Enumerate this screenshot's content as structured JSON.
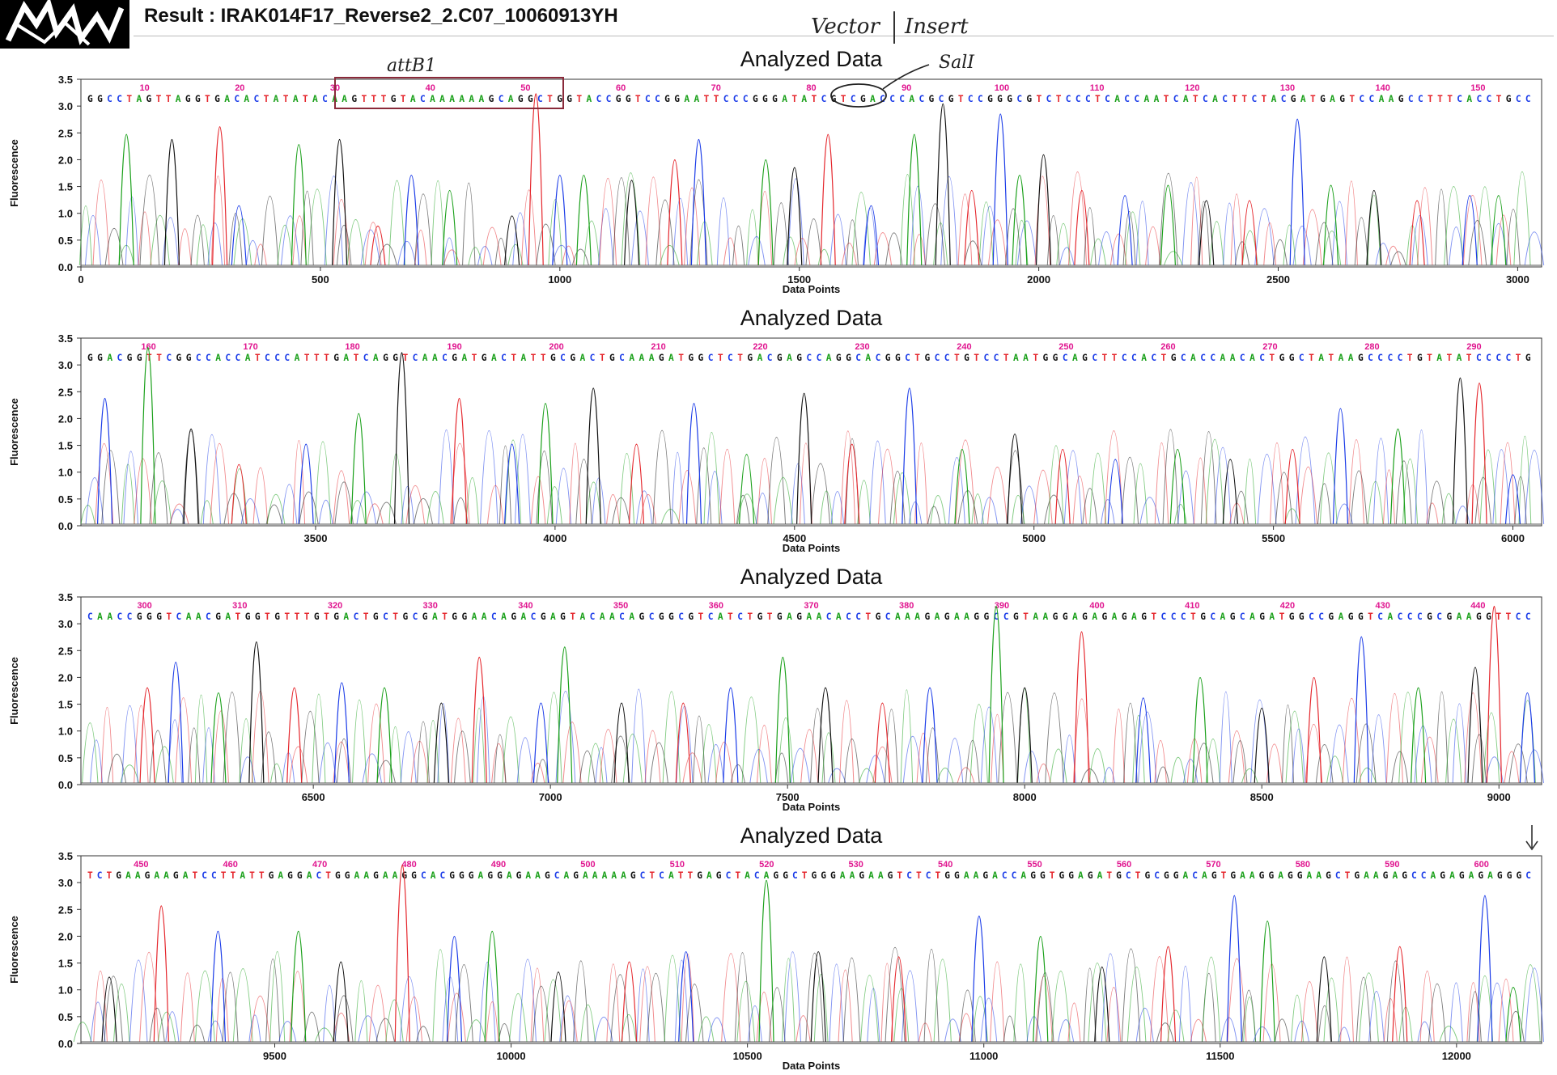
{
  "header": {
    "title": "Result  : IRAK014F17_Reverse2_2.C07_10060913YH",
    "handwritten_vector": "Vector",
    "handwritten_insert": "Insert"
  },
  "annotations": {
    "attB1": "attB1",
    "salI": "SalI"
  },
  "colors": {
    "A": "#1aa01a",
    "C": "#1a3be8",
    "G": "#111111",
    "T": "#e5262c",
    "position_numbers": "#e0158f"
  },
  "chart_data": [
    {
      "type": "line",
      "title": "Analyzed Data",
      "xlabel": "Data Points",
      "ylabel": "Fluorescence",
      "ylim": [
        0,
        3.5
      ],
      "yticks": [
        "0.0",
        "0.5",
        "1.0",
        "1.5",
        "2.0",
        "2.5",
        "3.0",
        "3.5"
      ],
      "xlim": [
        0,
        3050
      ],
      "xticks": [
        0,
        500,
        1000,
        1500,
        2000,
        2500,
        3000
      ],
      "base_positions": [
        10,
        20,
        30,
        40,
        50,
        60,
        70,
        80,
        90,
        100,
        110,
        120,
        130,
        140,
        150
      ],
      "sequence": "GGCCTAGTTAGGTGACACTATATACAAGTTTGTACAAAAAAGCAGGCTGGTACCGGTCCGGAATTCCCGGGATATCGTCGACCCACGCGTCCGGGCGTCTCCCTCACCAATCATCACTTCTACGATGAGTCCAAGCCTTTCACCTGCC",
      "peaks": [
        [
          95,
          2.6
        ],
        [
          190,
          2.5
        ],
        [
          290,
          2.75
        ],
        [
          330,
          1.2
        ],
        [
          455,
          2.4
        ],
        [
          540,
          2.5
        ],
        [
          620,
          0.8
        ],
        [
          690,
          1.8
        ],
        [
          770,
          1.5
        ],
        [
          900,
          1.0
        ],
        [
          950,
          3.4
        ],
        [
          1000,
          1.8
        ],
        [
          1050,
          1.8
        ],
        [
          1150,
          1.7
        ],
        [
          1240,
          2.1
        ],
        [
          1290,
          2.5
        ],
        [
          1430,
          2.1
        ],
        [
          1490,
          1.95
        ],
        [
          1560,
          2.6
        ],
        [
          1650,
          1.2
        ],
        [
          1740,
          2.6
        ],
        [
          1800,
          3.2
        ],
        [
          1860,
          1.5
        ],
        [
          1920,
          3.0
        ],
        [
          1960,
          1.8
        ],
        [
          2010,
          2.2
        ],
        [
          2090,
          1.5
        ],
        [
          2180,
          1.4
        ],
        [
          2270,
          1.6
        ],
        [
          2350,
          1.3
        ],
        [
          2440,
          1.3
        ],
        [
          2540,
          2.9
        ],
        [
          2610,
          1.6
        ],
        [
          2700,
          1.5
        ],
        [
          2790,
          1.3
        ],
        [
          2900,
          1.4
        ],
        [
          2960,
          1.4
        ]
      ]
    },
    {
      "type": "line",
      "title": "Analyzed Data",
      "xlabel": "Data Points",
      "ylabel": "Fluorescence",
      "ylim": [
        0,
        3.5
      ],
      "yticks": [
        "0.0",
        "0.5",
        "1.0",
        "1.5",
        "2.0",
        "2.5",
        "3.0",
        "3.5"
      ],
      "xlim": [
        3010,
        6060
      ],
      "xticks": [
        3500,
        4000,
        4500,
        5000,
        5500,
        6000
      ],
      "base_positions": [
        160,
        170,
        180,
        190,
        200,
        210,
        220,
        230,
        240,
        250,
        260,
        270,
        280,
        290
      ],
      "sequence": "GGACGGTTCGGCCACCATCCCATTTGATCAGGTCAACGATGACTATTGCGACTGCAAAGATGGCTCTGACGAGCCAGGCACGGCTGCCTGTCCTAATGGCAGCTTCCACTGCACCAACACTGGCTATAAGCCCCTGTATATCCCCTG",
      "peaks": [
        [
          3060,
          2.5
        ],
        [
          3150,
          3.5
        ],
        [
          3240,
          1.9
        ],
        [
          3340,
          1.2
        ],
        [
          3480,
          1.6
        ],
        [
          3590,
          2.2
        ],
        [
          3680,
          3.4
        ],
        [
          3800,
          2.5
        ],
        [
          3910,
          1.6
        ],
        [
          3980,
          2.4
        ],
        [
          4080,
          2.7
        ],
        [
          4170,
          1.6
        ],
        [
          4290,
          2.4
        ],
        [
          4400,
          1.4
        ],
        [
          4520,
          2.6
        ],
        [
          4620,
          1.6
        ],
        [
          4740,
          2.7
        ],
        [
          4850,
          1.5
        ],
        [
          4960,
          1.8
        ],
        [
          5060,
          1.5
        ],
        [
          5170,
          1.3
        ],
        [
          5300,
          1.5
        ],
        [
          5410,
          1.3
        ],
        [
          5540,
          1.5
        ],
        [
          5640,
          2.3
        ],
        [
          5760,
          1.9
        ],
        [
          5890,
          2.9
        ],
        [
          5930,
          2.8
        ],
        [
          6000,
          1.0
        ]
      ]
    },
    {
      "type": "line",
      "title": "Analyzed Data",
      "xlabel": "Data Points",
      "ylabel": "Fluorescence",
      "ylim": [
        0,
        3.5
      ],
      "yticks": [
        "0.0",
        "0.5",
        "1.0",
        "1.5",
        "2.0",
        "2.5",
        "3.0",
        "3.5"
      ],
      "xlim": [
        6010,
        9090
      ],
      "xticks": [
        6500,
        7000,
        7500,
        8000,
        8500,
        9000
      ],
      "base_positions": [
        300,
        310,
        320,
        330,
        340,
        350,
        360,
        370,
        380,
        390,
        400,
        410,
        420,
        430,
        440
      ],
      "sequence": "CAACCGGGTCAACGATGGTGTTTGTGACTGCTGCGATGGAACAGACGAGTACAACAGCGGCGTCATCTGTGAGAACACCTGCAAAGAGAAGGCCGTAAGGAGAGAGAGTCCCTGCAGCAGATGGCCGAGGTCACCCGCGAAGGTTCC",
      "peaks": [
        [
          6150,
          1.9
        ],
        [
          6210,
          2.4
        ],
        [
          6300,
          1.8
        ],
        [
          6380,
          2.8
        ],
        [
          6460,
          1.9
        ],
        [
          6560,
          2.0
        ],
        [
          6650,
          1.9
        ],
        [
          6770,
          1.6
        ],
        [
          6850,
          2.5
        ],
        [
          6980,
          1.6
        ],
        [
          7030,
          2.7
        ],
        [
          7150,
          1.6
        ],
        [
          7280,
          1.6
        ],
        [
          7380,
          1.9
        ],
        [
          7490,
          2.5
        ],
        [
          7580,
          1.9
        ],
        [
          7700,
          1.6
        ],
        [
          7800,
          1.9
        ],
        [
          7940,
          3.5
        ],
        [
          8000,
          1.9
        ],
        [
          8120,
          3.0
        ],
        [
          8250,
          1.7
        ],
        [
          8370,
          2.1
        ],
        [
          8500,
          1.5
        ],
        [
          8610,
          2.1
        ],
        [
          8710,
          2.9
        ],
        [
          8830,
          1.9
        ],
        [
          8950,
          2.3
        ],
        [
          8990,
          3.5
        ],
        [
          9060,
          1.8
        ]
      ]
    },
    {
      "type": "line",
      "title": "Analyzed Data",
      "xlabel": "Data Points",
      "ylabel": "Fluorescence",
      "ylim": [
        0,
        3.5
      ],
      "yticks": [
        "0.0",
        "0.5",
        "1.0",
        "1.5",
        "2.0",
        "2.5",
        "3.0",
        "3.5"
      ],
      "xlim": [
        9090,
        12180
      ],
      "xticks": [
        9500,
        10000,
        10500,
        11000,
        11500,
        12000
      ],
      "base_positions": [
        450,
        460,
        470,
        480,
        490,
        500,
        510,
        520,
        530,
        540,
        550,
        560,
        570,
        580,
        590,
        600
      ],
      "sequence": "TCTGAAGAAGATCCTTATTGAGGACTGGAAGAAGGCACGGGAGGAGAAGCAGAAAAAGCTCATTGAGCTACAGGCTGGGAAGAAGTCTCTGGAAGACCAGGTGGAGATGCTGCGGACAGTGAAGGAGGAAGCTGAAGAGCCAGAGAGAGGGC",
      "peaks": [
        [
          9150,
          1.3
        ],
        [
          9260,
          2.7
        ],
        [
          9380,
          2.2
        ],
        [
          9550,
          2.2
        ],
        [
          9640,
          1.6
        ],
        [
          9770,
          3.5
        ],
        [
          9880,
          2.1
        ],
        [
          9960,
          2.2
        ],
        [
          10100,
          1.4
        ],
        [
          10250,
          1.6
        ],
        [
          10370,
          1.8
        ],
        [
          10540,
          3.2
        ],
        [
          10650,
          1.8
        ],
        [
          10820,
          1.7
        ],
        [
          10990,
          2.5
        ],
        [
          11120,
          2.1
        ],
        [
          11250,
          1.5
        ],
        [
          11390,
          1.9
        ],
        [
          11530,
          2.9
        ],
        [
          11600,
          2.4
        ],
        [
          11720,
          1.7
        ],
        [
          11880,
          1.9
        ],
        [
          12060,
          2.9
        ],
        [
          12120,
          1.1
        ]
      ]
    }
  ]
}
